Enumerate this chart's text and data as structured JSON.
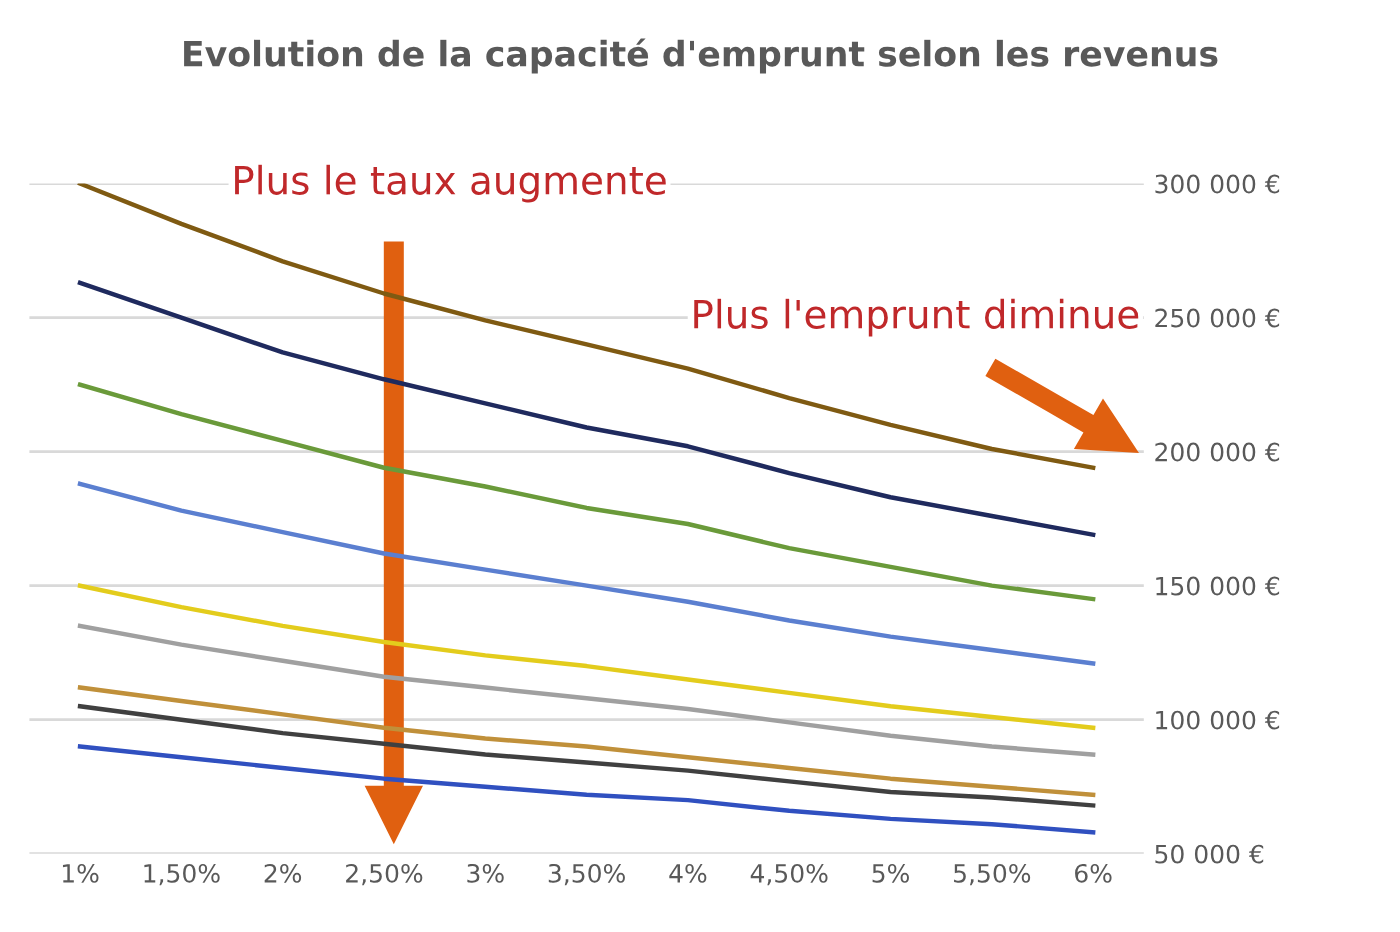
{
  "chart_data": {
    "type": "line",
    "title": "Evolution de la capacité d'emprunt selon les revenus",
    "categories": [
      "1%",
      "1,50%",
      "2%",
      "2,50%",
      "3%",
      "3,50%",
      "4%",
      "4,50%",
      "5%",
      "5,50%",
      "6%"
    ],
    "series": [
      {
        "color": "#7f5a12",
        "values": [
          300000,
          285000,
          271000,
          259000,
          249000,
          240000,
          231000,
          220000,
          210000,
          201000,
          194000
        ]
      },
      {
        "color": "#1f2a5e",
        "values": [
          263000,
          250000,
          237000,
          227000,
          218000,
          209000,
          202000,
          192000,
          183000,
          176000,
          169000
        ]
      },
      {
        "color": "#6a9a3a",
        "values": [
          225000,
          214000,
          204000,
          194000,
          187000,
          179000,
          173000,
          164000,
          157000,
          150000,
          145000
        ]
      },
      {
        "color": "#5b7fd0",
        "values": [
          188000,
          178000,
          170000,
          162000,
          156000,
          150000,
          144000,
          137000,
          131000,
          126000,
          121000
        ]
      },
      {
        "color": "#e3cc1c",
        "values": [
          150000,
          142000,
          135000,
          129000,
          124000,
          120000,
          115000,
          110000,
          105000,
          101000,
          97000
        ]
      },
      {
        "color": "#a0a0a0",
        "values": [
          135000,
          128000,
          122000,
          116000,
          112000,
          108000,
          104000,
          99000,
          94000,
          90000,
          87000
        ]
      },
      {
        "color": "#c0903a",
        "values": [
          112000,
          107000,
          102000,
          97000,
          93000,
          90000,
          86000,
          82000,
          78000,
          75000,
          72000
        ]
      },
      {
        "color": "#404040",
        "values": [
          105000,
          100000,
          95000,
          91000,
          87000,
          84000,
          81000,
          77000,
          73000,
          71000,
          68000
        ]
      },
      {
        "color": "#3050c0",
        "values": [
          90000,
          86000,
          82000,
          78000,
          75000,
          72000,
          70000,
          66000,
          63000,
          61000,
          58000
        ]
      }
    ],
    "ylim": [
      50000,
      300000
    ],
    "yticks": [
      {
        "value": 50000,
        "label": "50 000 €"
      },
      {
        "value": 100000,
        "label": "100 000 €"
      },
      {
        "value": 150000,
        "label": "150 000 €"
      },
      {
        "value": 200000,
        "label": "200 000 €"
      },
      {
        "value": 250000,
        "label": "250 000 €"
      },
      {
        "value": 300000,
        "label": "300 000 €"
      }
    ],
    "grid": "y",
    "marker": "none",
    "line_style": "solid",
    "legend": false,
    "annotations": [
      "Plus le taux augmente",
      "Plus l'emprunt diminue"
    ]
  }
}
